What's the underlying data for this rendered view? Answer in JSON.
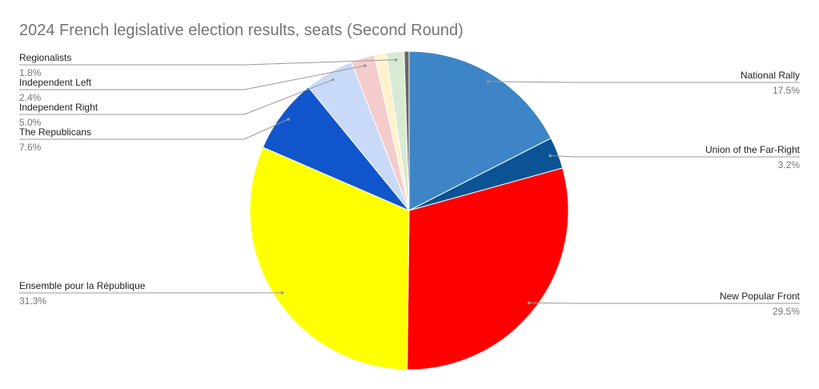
{
  "chart_data": {
    "type": "pie",
    "title": "2024 French legislative election results, seats (Second Round)",
    "categories": [
      "National Rally",
      "Union of the Far-Right",
      "New Popular Front",
      "Ensemble pour la République",
      "The Republicans",
      "Independent Right",
      "Independent Left",
      null,
      "Regionalists",
      null
    ],
    "values": [
      17.5,
      3.2,
      29.5,
      31.3,
      7.6,
      5.0,
      2.4,
      1.2,
      1.8,
      0.5
    ],
    "value_labels": [
      "17.5%",
      "3.2%",
      "29.5%",
      "31.3%",
      "7.6%",
      "5.0%",
      "2.4%",
      null,
      "1.8%",
      null
    ],
    "colors": [
      "#3d85c6",
      "#0b5394",
      "#ff0000",
      "#ffff00",
      "#1155cc",
      "#c9daf8",
      "#f4cccc",
      "#fff2cc",
      "#d9ead3",
      "#666666"
    ]
  }
}
